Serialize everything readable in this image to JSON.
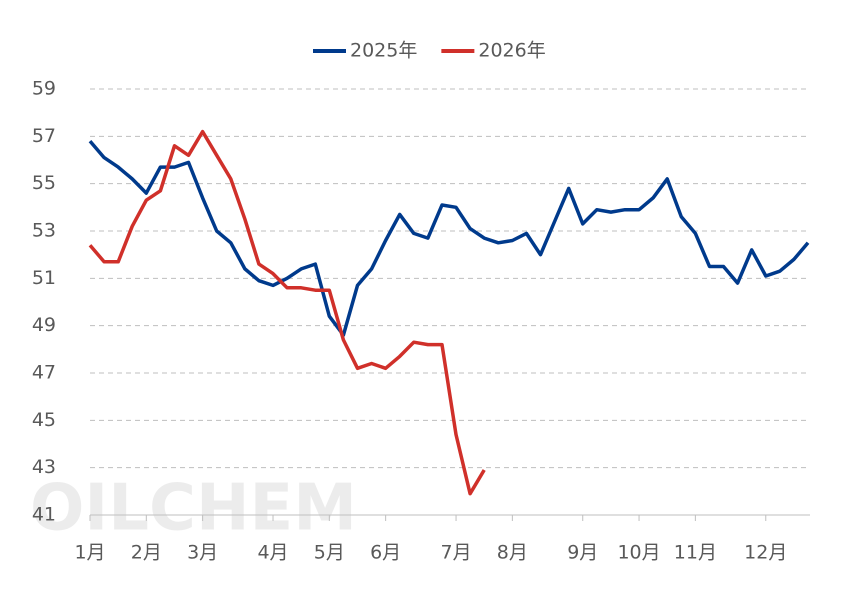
{
  "chart_data": {
    "type": "line",
    "watermark": "OILCHEM",
    "categories": [
      "1月",
      null,
      null,
      null,
      "2月",
      null,
      null,
      null,
      "3月",
      null,
      null,
      null,
      null,
      "4月",
      null,
      null,
      null,
      "5月",
      null,
      null,
      null,
      "6月",
      null,
      null,
      null,
      null,
      "7月",
      null,
      null,
      null,
      "8月",
      null,
      null,
      null,
      null,
      "9月",
      null,
      null,
      null,
      "10月",
      null,
      null,
      null,
      "11月",
      null,
      null,
      null,
      null,
      "12月",
      null,
      null,
      null
    ],
    "series": [
      {
        "name": "2025年",
        "color": "#003a8c",
        "values": [
          56.8,
          56.1,
          55.7,
          55.2,
          54.6,
          55.7,
          55.7,
          55.9,
          54.4,
          53.0,
          52.5,
          51.4,
          50.9,
          50.7,
          51.0,
          51.4,
          51.6,
          49.4,
          48.6,
          50.7,
          51.4,
          52.6,
          53.7,
          52.9,
          52.7,
          54.1,
          54.0,
          53.1,
          52.7,
          52.5,
          52.6,
          52.9,
          52.0,
          53.4,
          54.8,
          53.3,
          53.9,
          53.8,
          53.9,
          53.9,
          54.4,
          55.2,
          53.6,
          52.9,
          51.5,
          51.5,
          50.8,
          52.2,
          51.1,
          51.3,
          51.8,
          52.5
        ]
      },
      {
        "name": "2026年",
        "color": "#d0302a",
        "values": [
          52.4,
          51.7,
          51.7,
          53.2,
          54.3,
          54.7,
          56.6,
          56.2,
          57.2,
          56.2,
          55.2,
          53.5,
          51.6,
          51.2,
          50.6,
          50.6,
          50.5,
          50.5,
          48.4,
          47.2,
          47.4,
          47.2,
          47.7,
          48.3,
          48.2,
          48.2,
          44.4,
          41.9,
          42.9,
          null,
          null,
          null,
          null,
          null,
          null,
          null,
          null,
          null,
          null,
          null,
          null,
          null,
          null,
          null,
          null,
          null,
          null,
          null,
          null,
          null,
          null,
          null
        ]
      }
    ],
    "ylim": [
      41,
      59
    ],
    "yticks": [
      41,
      43,
      45,
      47,
      49,
      51,
      53,
      55,
      57,
      59
    ],
    "grid": true,
    "legend": "top"
  }
}
